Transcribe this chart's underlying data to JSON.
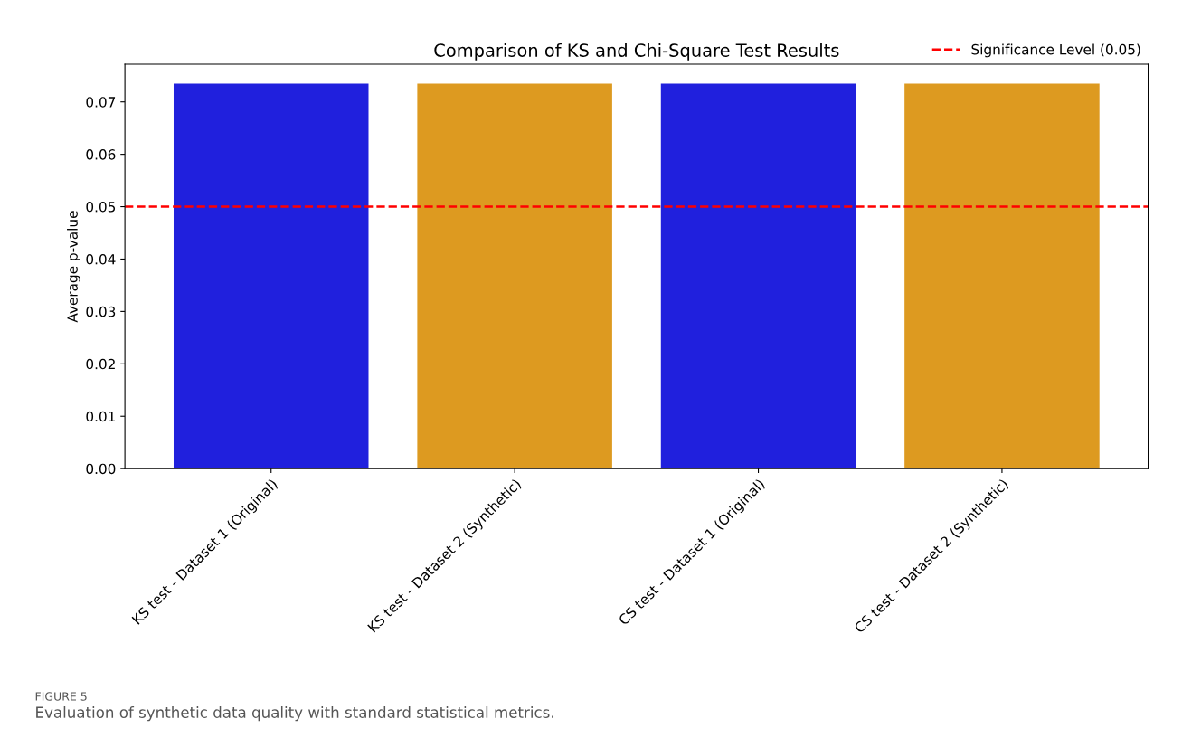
{
  "chart_data": {
    "type": "bar",
    "title": "Comparison of KS and Chi-Square Test Results",
    "ylabel": "Average p-value",
    "categories": [
      "KS test - Dataset 1 (Original)",
      "KS test - Dataset 2 (Synthetic)",
      "CS test - Dataset 1 (Original)",
      "CS test - Dataset 2 (Synthetic)"
    ],
    "values": [
      0.0735,
      0.0735,
      0.0735,
      0.0735
    ],
    "colors": [
      "#2020dd",
      "#dd9a20",
      "#2020dd",
      "#dd9a20"
    ],
    "ylim": [
      0,
      0.0772
    ],
    "yticks": [
      {
        "value": 0,
        "label": "0.00"
      },
      {
        "value": 0.01,
        "label": "0.01"
      },
      {
        "value": 0.02,
        "label": "0.02"
      },
      {
        "value": 0.03,
        "label": "0.03"
      },
      {
        "value": 0.04,
        "label": "0.04"
      },
      {
        "value": 0.05,
        "label": "0.05"
      },
      {
        "value": 0.06,
        "label": "0.06"
      },
      {
        "value": 0.07,
        "label": "0.07"
      }
    ],
    "ref_lines": [
      {
        "axis": "y",
        "value": 0.05,
        "label": "Significance Level (0.05)",
        "color": "#ff0000",
        "line_style": "dashed"
      }
    ],
    "legend": "top right",
    "grid": false,
    "annotations": [
      "FIGURE 5",
      "Evaluation of synthetic data quality with standard statistical metrics."
    ]
  }
}
